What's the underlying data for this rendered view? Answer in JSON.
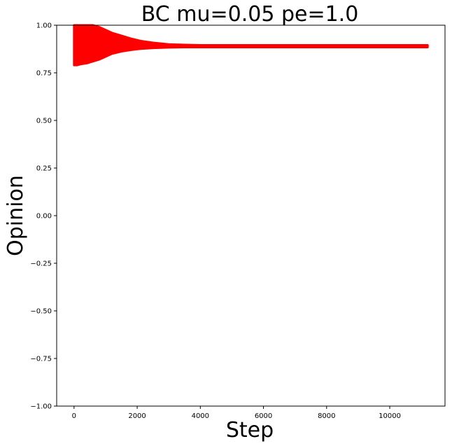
{
  "chart_data": {
    "type": "area",
    "title": "BC mu=0.05 pe=1.0",
    "xlabel": "Step",
    "ylabel": "Opinion",
    "xlim": [
      -550,
      11750
    ],
    "ylim": [
      -1.0,
      1.0
    ],
    "xticks": [
      0,
      2000,
      4000,
      6000,
      8000,
      10000
    ],
    "yticks": [
      1.0,
      0.75,
      0.5,
      0.25,
      0.0,
      -0.25,
      -0.5,
      -0.75,
      -1.0
    ],
    "ytick_labels": [
      "1.00",
      "0.75",
      "0.50",
      "0.25",
      "0.00",
      "−0.25",
      "−0.50",
      "−0.75",
      "−1.00"
    ],
    "grid": false,
    "series": [
      {
        "color": "#ff0000",
        "x": [
          0,
          100,
          200,
          400,
          600,
          800,
          1000,
          1200,
          1500,
          1800,
          2100,
          2500,
          3000,
          3500,
          4000,
          5000,
          7000,
          9000,
          11200
        ],
        "upper": [
          1.0,
          1.0,
          1.0,
          1.0,
          1.0,
          0.99,
          0.975,
          0.96,
          0.945,
          0.93,
          0.918,
          0.908,
          0.9,
          0.897,
          0.895,
          0.895,
          0.895,
          0.895,
          0.895
        ],
        "lower": [
          0.79,
          0.79,
          0.795,
          0.8,
          0.81,
          0.82,
          0.835,
          0.85,
          0.862,
          0.87,
          0.876,
          0.88,
          0.883,
          0.884,
          0.884,
          0.884,
          0.884,
          0.884,
          0.884
        ]
      }
    ]
  }
}
